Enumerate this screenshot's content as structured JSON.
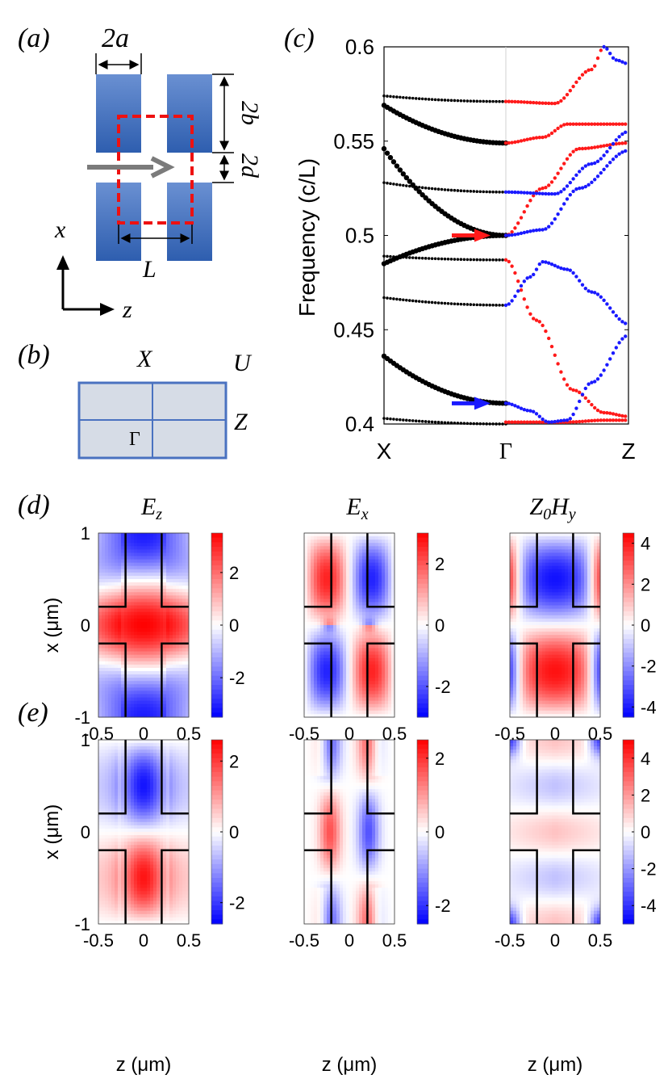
{
  "panels": {
    "a": {
      "label": "(a)",
      "dim_2a": "2a",
      "dim_2b": "2b",
      "dim_2d": "2d",
      "dim_L": "L",
      "axis_x": "x",
      "axis_z": "z"
    },
    "b": {
      "label": "(b)",
      "X": "X",
      "U": "U",
      "Z": "Z",
      "Gamma": "Γ"
    },
    "c": {
      "label": "(c)"
    },
    "d": {
      "label": "(d)"
    },
    "e": {
      "label": "(e)"
    }
  },
  "colors": {
    "block_top": "#5b84c9",
    "block_bottom": "#2f5fb0",
    "red": "#ff1a1a",
    "blue": "#1a1aff",
    "black": "#000000",
    "cell_border": "#4a72c0",
    "cell_fill": "#d6dce6"
  },
  "chart_data": [
    {
      "type": "line",
      "id": "band-diagram",
      "ylabel": "Frequency (c/L)",
      "xticks": [
        "X",
        "Γ",
        "Z"
      ],
      "ylim": [
        0.4,
        0.6
      ],
      "yticks": [
        "0.4",
        "0.45",
        "0.5",
        "0.55",
        "0.6"
      ],
      "ytick_values": [
        0.4,
        0.45,
        0.5,
        0.55,
        0.6
      ],
      "series_XG": [
        {
          "name": "XG-1",
          "w": "thin",
          "f": [
            0.403,
            0.4
          ]
        },
        {
          "name": "XG-2",
          "w": "thick",
          "f": [
            0.436,
            0.411
          ]
        },
        {
          "name": "XG-3",
          "w": "thin",
          "f": [
            0.467,
            0.463
          ]
        },
        {
          "name": "XG-4",
          "w": "thin",
          "f": [
            0.489,
            0.487
          ]
        },
        {
          "name": "XG-5",
          "w": "thick",
          "f": [
            0.485,
            0.5
          ]
        },
        {
          "name": "XG-6",
          "w": "thick",
          "f": [
            0.546,
            0.5
          ]
        },
        {
          "name": "XG-7",
          "w": "thin",
          "f": [
            0.528,
            0.523
          ]
        },
        {
          "name": "XG-8",
          "w": "thick",
          "f": [
            0.569,
            0.549
          ]
        },
        {
          "name": "XG-9",
          "w": "thin",
          "f": [
            0.574,
            0.571
          ]
        }
      ],
      "series_GZ": [
        {
          "name": "red-1",
          "color": "red",
          "points": [
            [
              0.0,
              0.401
            ],
            [
              0.2,
              0.401
            ],
            [
              0.5,
              0.401
            ],
            [
              0.8,
              0.402
            ],
            [
              1.0,
              0.402
            ]
          ]
        },
        {
          "name": "red-2",
          "color": "red",
          "points": [
            [
              0.0,
              0.487
            ],
            [
              0.25,
              0.455
            ],
            [
              0.55,
              0.418
            ],
            [
              0.8,
              0.406
            ],
            [
              1.0,
              0.404
            ]
          ]
        },
        {
          "name": "red-3",
          "color": "red",
          "points": [
            [
              0.0,
              0.5
            ],
            [
              0.3,
              0.525
            ],
            [
              0.6,
              0.546
            ],
            [
              1.0,
              0.549
            ]
          ]
        },
        {
          "name": "red-4",
          "color": "red",
          "points": [
            [
              0.0,
              0.549
            ],
            [
              0.3,
              0.552
            ],
            [
              0.5,
              0.559
            ],
            [
              1.0,
              0.559
            ]
          ]
        },
        {
          "name": "red-5",
          "color": "red",
          "points": [
            [
              0.0,
              0.571
            ],
            [
              0.4,
              0.57
            ],
            [
              0.7,
              0.588
            ],
            [
              0.8,
              0.6
            ]
          ]
        },
        {
          "name": "blue-1",
          "color": "blue",
          "points": [
            [
              0.0,
              0.411
            ],
            [
              0.2,
              0.407
            ],
            [
              0.35,
              0.401
            ],
            [
              0.5,
              0.402
            ],
            [
              0.7,
              0.422
            ],
            [
              1.0,
              0.447
            ]
          ]
        },
        {
          "name": "blue-2",
          "color": "blue",
          "points": [
            [
              0.0,
              0.463
            ],
            [
              0.2,
              0.478
            ],
            [
              0.3,
              0.486
            ],
            [
              0.5,
              0.482
            ],
            [
              0.7,
              0.47
            ],
            [
              1.0,
              0.453
            ]
          ]
        },
        {
          "name": "blue-3",
          "color": "blue",
          "points": [
            [
              0.0,
              0.5
            ],
            [
              0.3,
              0.503
            ],
            [
              0.6,
              0.525
            ],
            [
              1.0,
              0.545
            ]
          ]
        },
        {
          "name": "blue-4",
          "color": "blue",
          "points": [
            [
              0.0,
              0.523
            ],
            [
              0.4,
              0.522
            ],
            [
              0.7,
              0.538
            ],
            [
              1.0,
              0.555
            ]
          ]
        },
        {
          "name": "blue-5",
          "color": "blue",
          "points": [
            [
              0.8,
              0.6
            ],
            [
              0.9,
              0.593
            ],
            [
              1.0,
              0.591
            ]
          ]
        }
      ],
      "arrows": [
        {
          "color": "red",
          "f": 0.5
        },
        {
          "color": "blue",
          "f": 0.411
        }
      ]
    },
    {
      "type": "heatmap",
      "id": "field-maps",
      "xlabel": "z (μm)",
      "ylabel": "x (μm)",
      "xlim": [
        -0.5,
        0.5
      ],
      "ylim": [
        -1,
        1
      ],
      "xticks": [
        "-0.5",
        "0",
        "0.5"
      ],
      "xtick_values": [
        -0.5,
        0,
        0.5
      ],
      "yticks": [
        "1",
        "0",
        "-1"
      ],
      "ytick_values": [
        1,
        0,
        -1
      ],
      "col_titles": [
        "E_z",
        "E_x",
        "Z_0 H_y"
      ],
      "rows": [
        {
          "label": "(d)",
          "maps": [
            {
              "field": "Ez",
              "ticks": [
                "2",
                "0",
                "-2"
              ],
              "tick_values": [
                2,
                0,
                -2
              ],
              "clim": [
                -3.5,
                3.5
              ]
            },
            {
              "field": "Ex",
              "ticks": [
                "2",
                "0",
                "-2"
              ],
              "tick_values": [
                2,
                0,
                -2
              ],
              "clim": [
                -3,
                3
              ]
            },
            {
              "field": "Hy",
              "ticks": [
                "4",
                "2",
                "0",
                "-2",
                "-4"
              ],
              "tick_values": [
                4,
                2,
                0,
                -2,
                -4
              ],
              "clim": [
                -4.5,
                4.5
              ]
            }
          ]
        },
        {
          "label": "(e)",
          "maps": [
            {
              "field": "Ez",
              "ticks": [
                "2",
                "0",
                "-2"
              ],
              "tick_values": [
                2,
                0,
                -2
              ],
              "clim": [
                -2.6,
                2.6
              ]
            },
            {
              "field": "Ex",
              "ticks": [
                "2",
                "0",
                "-2"
              ],
              "tick_values": [
                2,
                0,
                -2
              ],
              "clim": [
                -2.5,
                2.5
              ]
            },
            {
              "field": "Hy",
              "ticks": [
                "4",
                "2",
                "0",
                "-2",
                "-4"
              ],
              "tick_values": [
                4,
                2,
                0,
                -2,
                -4
              ],
              "clim": [
                -5,
                5
              ]
            }
          ]
        }
      ]
    }
  ]
}
